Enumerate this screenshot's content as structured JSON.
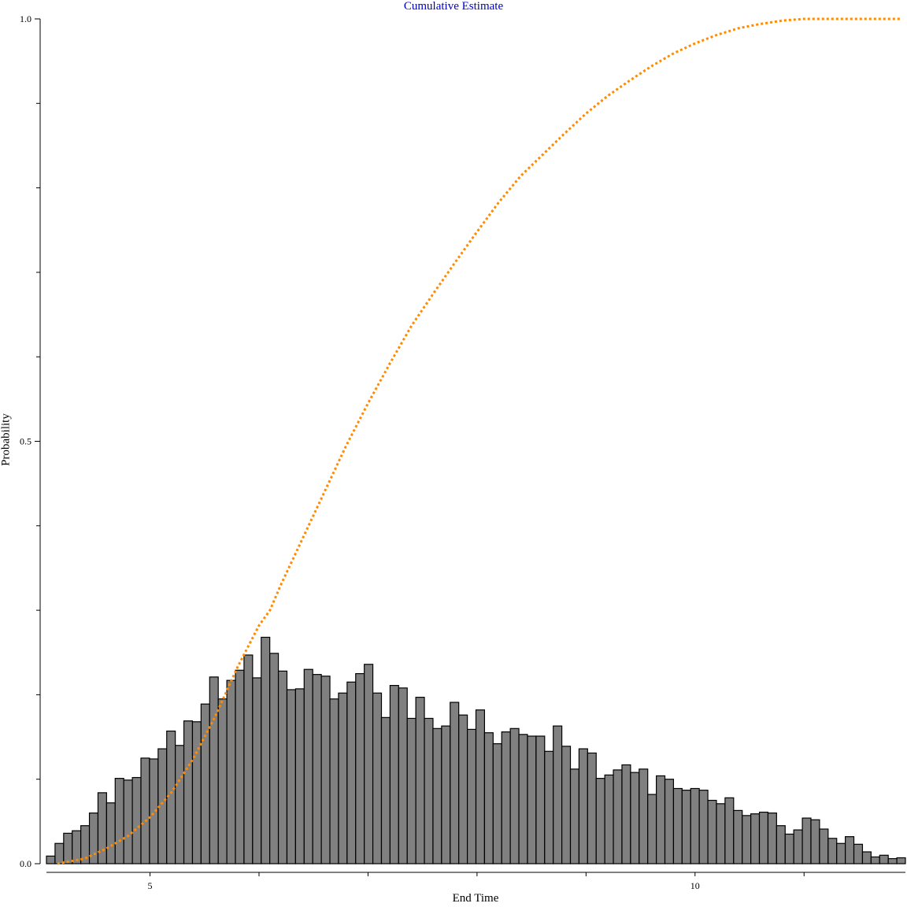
{
  "chart_data": {
    "type": "bar",
    "title": "Cumulative Estimate",
    "xlabel": "End Time",
    "ylabel": "Probability",
    "xlim": [
      4.05,
      11.93
    ],
    "ylim": [
      0,
      1
    ],
    "x_ticks": [
      5,
      10
    ],
    "x_minor_ticks": [
      6,
      7,
      8,
      9,
      11
    ],
    "y_ticks": [
      0.0,
      0.5,
      1.0
    ],
    "y_tick_labels": [
      "0.0",
      "0.5",
      "1.0"
    ],
    "y_minor_ticks": [
      0.1,
      0.2,
      0.3,
      0.4,
      0.6,
      0.7,
      0.8,
      0.9
    ],
    "bin_start": 4.05,
    "bin_width": 0.0788,
    "histogram": {
      "name": "histogram",
      "color": "#808080",
      "values": [
        0.009,
        0.024,
        0.036,
        0.039,
        0.045,
        0.06,
        0.084,
        0.072,
        0.101,
        0.099,
        0.102,
        0.125,
        0.124,
        0.136,
        0.157,
        0.14,
        0.169,
        0.168,
        0.189,
        0.221,
        0.195,
        0.217,
        0.229,
        0.247,
        0.22,
        0.268,
        0.249,
        0.228,
        0.206,
        0.207,
        0.23,
        0.224,
        0.222,
        0.195,
        0.202,
        0.215,
        0.225,
        0.236,
        0.202,
        0.173,
        0.211,
        0.208,
        0.172,
        0.197,
        0.172,
        0.16,
        0.163,
        0.191,
        0.176,
        0.159,
        0.182,
        0.155,
        0.142,
        0.156,
        0.16,
        0.153,
        0.151,
        0.151,
        0.133,
        0.163,
        0.139,
        0.112,
        0.136,
        0.131,
        0.101,
        0.105,
        0.111,
        0.117,
        0.108,
        0.112,
        0.082,
        0.104,
        0.1,
        0.089,
        0.087,
        0.089,
        0.087,
        0.075,
        0.071,
        0.078,
        0.063,
        0.057,
        0.059,
        0.061,
        0.06,
        0.045,
        0.035,
        0.04,
        0.054,
        0.052,
        0.041,
        0.03,
        0.024,
        0.032,
        0.023,
        0.014,
        0.008,
        0.01,
        0.006,
        0.007
      ]
    },
    "series": [
      {
        "name": "cumulative",
        "style": "dotted",
        "color": "#ff8c00",
        "x": [
          4.15,
          4.4,
          4.6,
          4.8,
          5.0,
          5.2,
          5.4,
          5.6,
          5.8,
          6.0,
          6.1,
          6.2,
          6.4,
          6.6,
          6.8,
          7.0,
          7.2,
          7.4,
          7.6,
          7.8,
          8.0,
          8.2,
          8.4,
          8.6,
          8.8,
          9.0,
          9.2,
          9.4,
          9.6,
          9.8,
          10.0,
          10.2,
          10.4,
          10.6,
          10.8,
          11.0,
          11.2,
          11.4,
          11.6,
          11.9
        ],
        "y": [
          0.0,
          0.006,
          0.018,
          0.033,
          0.055,
          0.085,
          0.125,
          0.175,
          0.232,
          0.282,
          0.3,
          0.33,
          0.385,
          0.44,
          0.495,
          0.545,
          0.592,
          0.637,
          0.675,
          0.712,
          0.748,
          0.783,
          0.814,
          0.839,
          0.864,
          0.888,
          0.909,
          0.927,
          0.944,
          0.959,
          0.971,
          0.981,
          0.989,
          0.994,
          0.998,
          1.0,
          1.0,
          1.0,
          1.0,
          1.0
        ]
      }
    ]
  }
}
